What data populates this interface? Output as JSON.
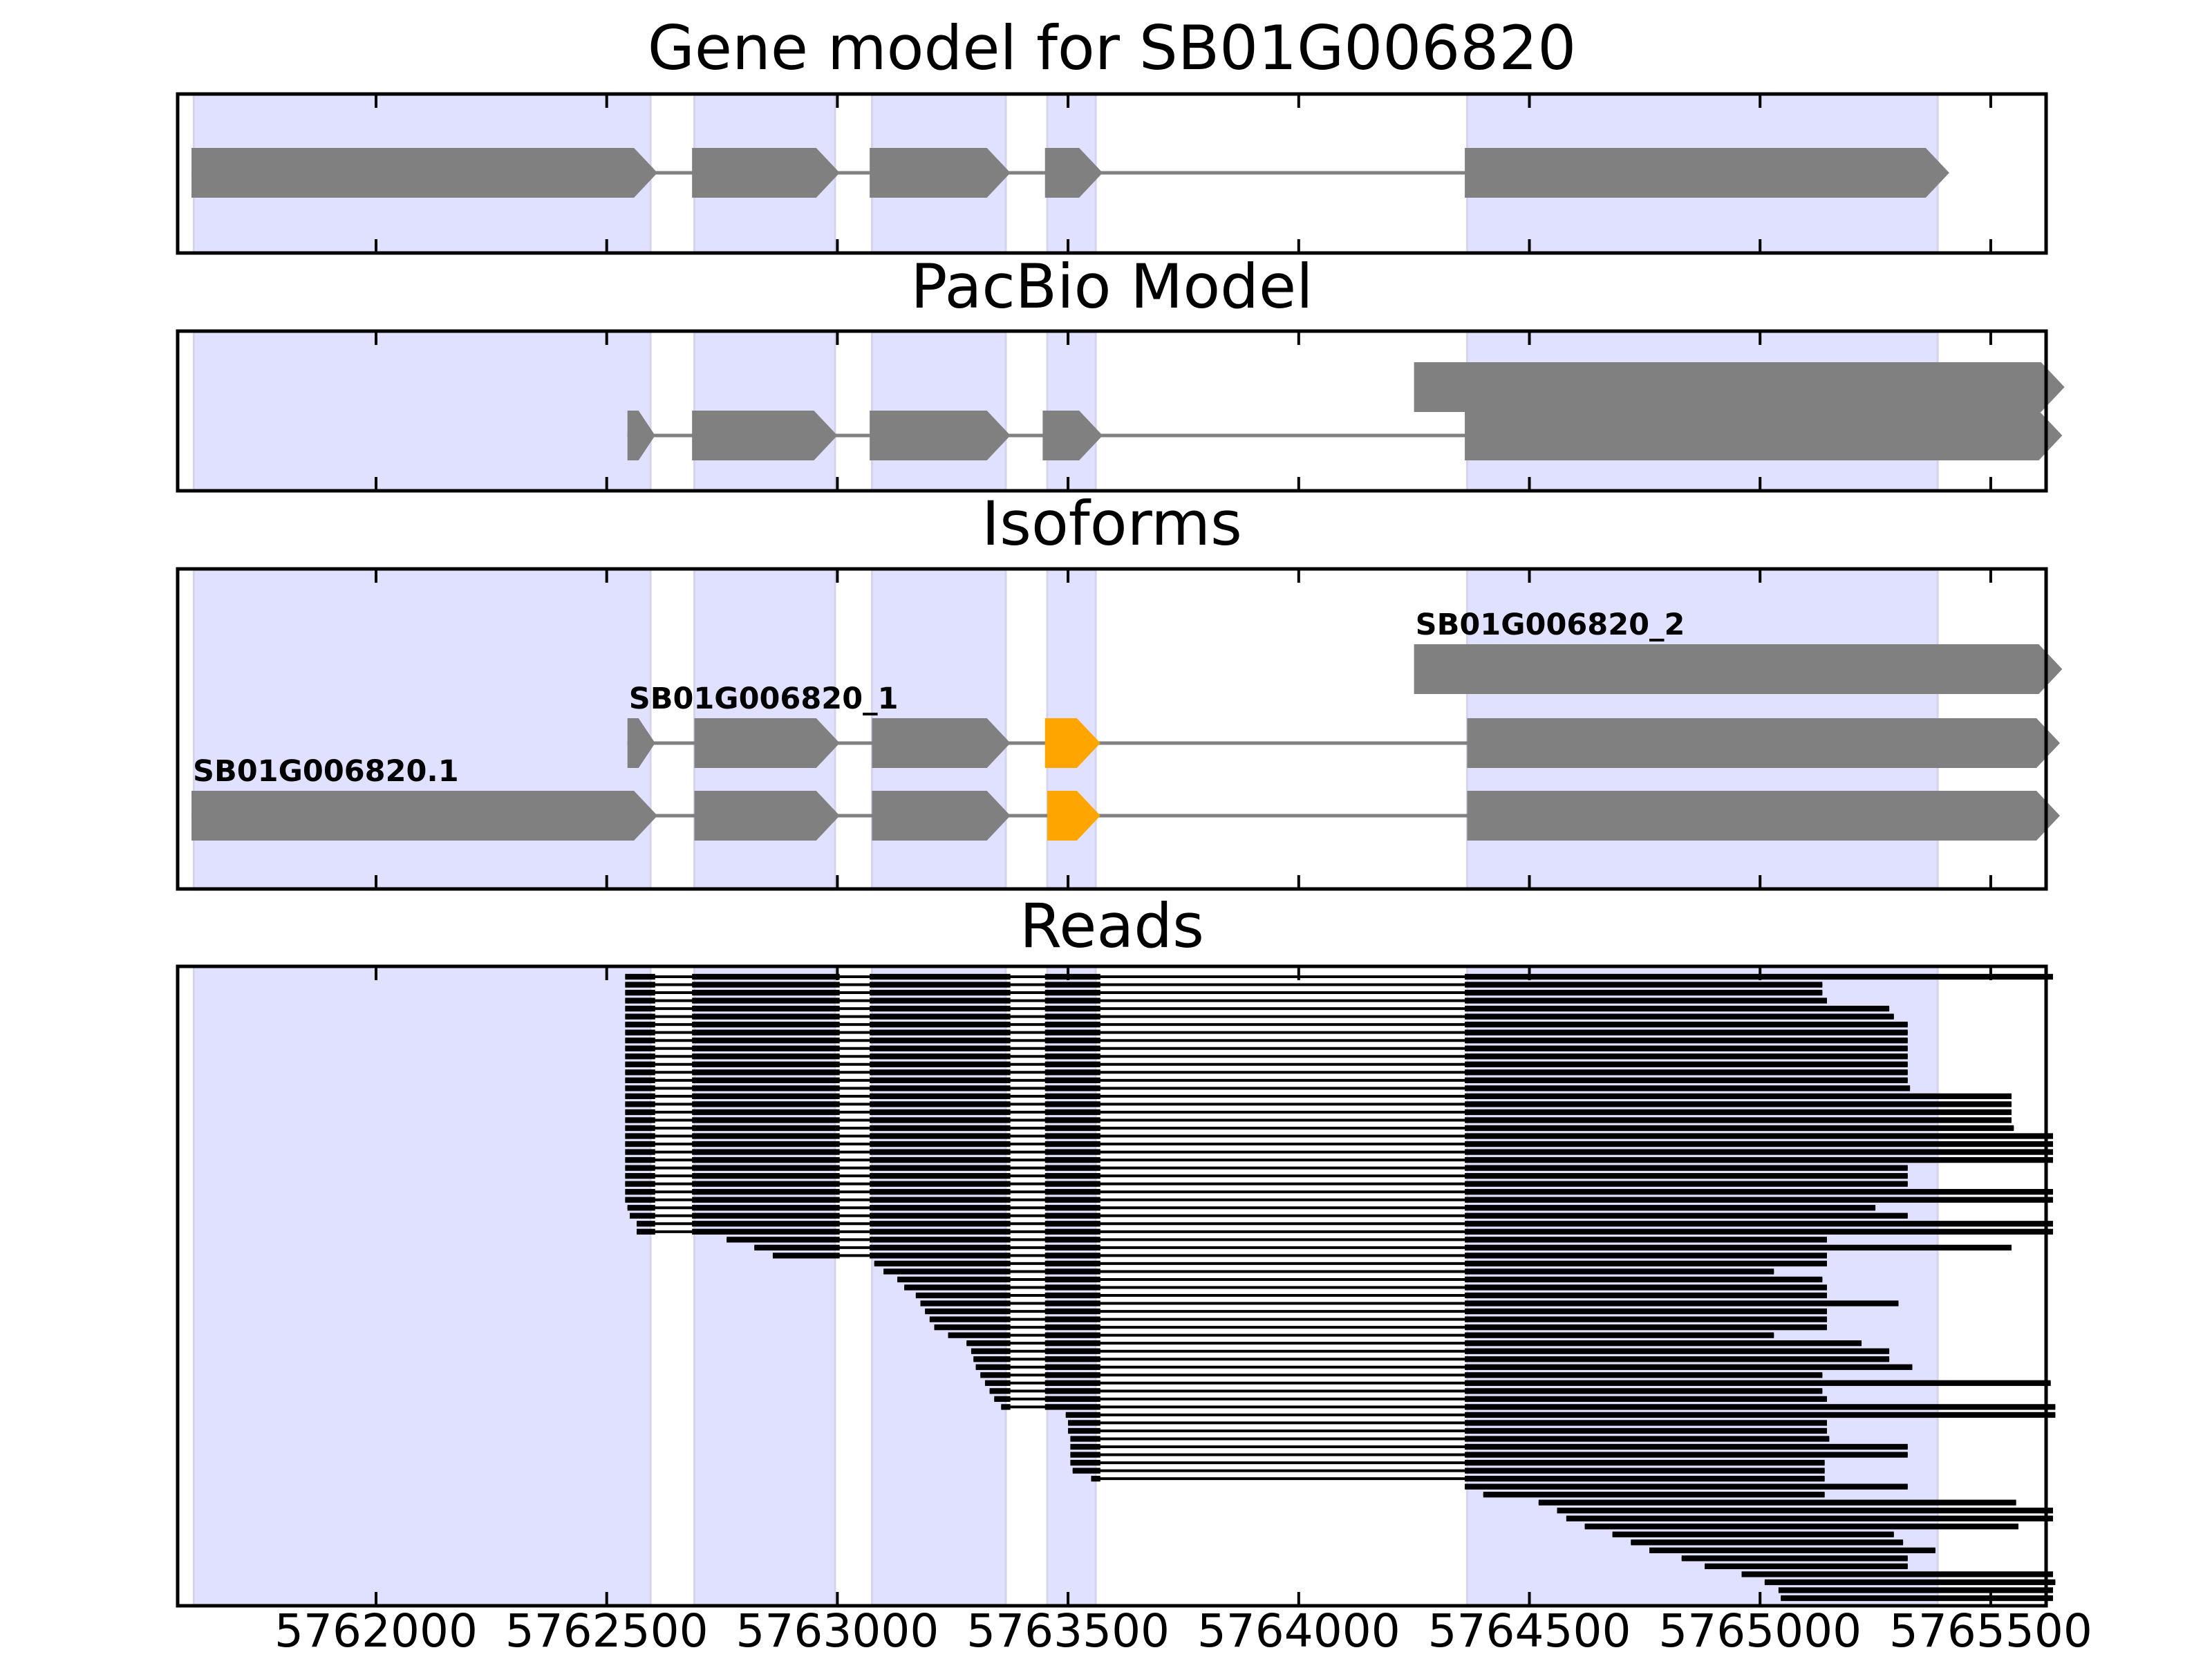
{
  "chart_data": {
    "type": "gene_model_tracks",
    "colors": {
      "exon": "#808080",
      "intron": "#808080",
      "highlight_exon": "#ffa500",
      "exon_band": "#e0e0ff",
      "read": "#000000",
      "frame": "#000000"
    },
    "xlim": [
      5761570,
      5765620
    ],
    "x_ticks": [
      5762000,
      5762500,
      5763000,
      5763500,
      5764000,
      5764500,
      5765000,
      5765500
    ],
    "x_tick_labels": [
      "5762000",
      "5762500",
      "5763000",
      "5763500",
      "5764000",
      "5764500",
      "5765000",
      "5765500"
    ],
    "exon_bands": [
      [
        5761605,
        5762595
      ],
      [
        5762690,
        5762995
      ],
      [
        5763075,
        5763365
      ],
      [
        5763455,
        5763560
      ],
      [
        5764365,
        5765385
      ]
    ],
    "panels": [
      {
        "key": "gene",
        "title": "Gene model for SB01G006820",
        "tracks": [
          {
            "label": "",
            "exons": [
              [
                5761600,
                5762610
              ],
              [
                5762685,
                5763005
              ],
              [
                5763070,
                5763375
              ],
              [
                5763450,
                5763575
              ],
              [
                5764360,
                5765410
              ]
            ]
          }
        ]
      },
      {
        "key": "pacbio",
        "title": "PacBio Model",
        "tracks": [
          {
            "label": "",
            "exons": [
              [
                5764250,
                5765660
              ]
            ]
          },
          {
            "label": "",
            "exons": [
              [
                5762545,
                5762605
              ],
              [
                5762685,
                5763000
              ],
              [
                5763070,
                5763375
              ],
              [
                5763445,
                5763575
              ],
              [
                5764360,
                5765655
              ]
            ]
          }
        ]
      },
      {
        "key": "isoforms",
        "title": "Isoforms",
        "tracks": [
          {
            "label": "SB01G006820_2",
            "exons": [
              [
                5764250,
                5765655
              ]
            ],
            "highlight": []
          },
          {
            "label": "SB01G006820_1",
            "exons": [
              [
                5762545,
                5762605
              ],
              [
                5762690,
                5763005
              ],
              [
                5763075,
                5763375
              ],
              [
                5763450,
                5763570
              ],
              [
                5764365,
                5765650
              ]
            ],
            "highlight": [
              3
            ]
          },
          {
            "label": "SB01G006820.1",
            "exons": [
              [
                5761600,
                5762610
              ],
              [
                5762690,
                5763005
              ],
              [
                5763075,
                5763375
              ],
              [
                5763455,
                5763570
              ],
              [
                5764365,
                5765650
              ]
            ],
            "highlight": [
              3
            ]
          }
        ]
      },
      {
        "key": "reads",
        "title": "Reads",
        "tracks": []
      }
    ],
    "reads": [
      {
        "start": 5762540,
        "end": 5765635
      },
      {
        "start": 5762540,
        "end": 5765135
      },
      {
        "start": 5762540,
        "end": 5765135
      },
      {
        "start": 5762540,
        "end": 5765145
      },
      {
        "start": 5762540,
        "end": 5765280
      },
      {
        "start": 5762540,
        "end": 5765290
      },
      {
        "start": 5762540,
        "end": 5765320
      },
      {
        "start": 5762540,
        "end": 5765320
      },
      {
        "start": 5762540,
        "end": 5765320
      },
      {
        "start": 5762540,
        "end": 5765320
      },
      {
        "start": 5762540,
        "end": 5765320
      },
      {
        "start": 5762540,
        "end": 5765320
      },
      {
        "start": 5762540,
        "end": 5765320
      },
      {
        "start": 5762540,
        "end": 5765320
      },
      {
        "start": 5762540,
        "end": 5765325
      },
      {
        "start": 5762540,
        "end": 5765545
      },
      {
        "start": 5762540,
        "end": 5765545
      },
      {
        "start": 5762540,
        "end": 5765545
      },
      {
        "start": 5762540,
        "end": 5765545
      },
      {
        "start": 5762540,
        "end": 5765550
      },
      {
        "start": 5762540,
        "end": 5765635
      },
      {
        "start": 5762540,
        "end": 5765635
      },
      {
        "start": 5762540,
        "end": 5765635
      },
      {
        "start": 5762540,
        "end": 5765635
      },
      {
        "start": 5762540,
        "end": 5765320
      },
      {
        "start": 5762540,
        "end": 5765320
      },
      {
        "start": 5762540,
        "end": 5765320
      },
      {
        "start": 5762540,
        "end": 5765635
      },
      {
        "start": 5762540,
        "end": 5765635
      },
      {
        "start": 5762545,
        "end": 5765250
      },
      {
        "start": 5762550,
        "end": 5765320
      },
      {
        "start": 5762565,
        "end": 5765635
      },
      {
        "start": 5762565,
        "end": 5765635
      },
      {
        "start": 5762760,
        "end": 5765145
      },
      {
        "start": 5762820,
        "end": 5765545
      },
      {
        "start": 5762860,
        "end": 5765145
      },
      {
        "start": 5763080,
        "end": 5765145
      },
      {
        "start": 5763100,
        "end": 5765030
      },
      {
        "start": 5763130,
        "end": 5765135
      },
      {
        "start": 5763145,
        "end": 5765145
      },
      {
        "start": 5763170,
        "end": 5765145
      },
      {
        "start": 5763180,
        "end": 5765300
      },
      {
        "start": 5763190,
        "end": 5765145
      },
      {
        "start": 5763200,
        "end": 5765145
      },
      {
        "start": 5763210,
        "end": 5765145
      },
      {
        "start": 5763240,
        "end": 5765030
      },
      {
        "start": 5763280,
        "end": 5765220
      },
      {
        "start": 5763290,
        "end": 5765280
      },
      {
        "start": 5763295,
        "end": 5765280
      },
      {
        "start": 5763300,
        "end": 5765330
      },
      {
        "start": 5763310,
        "end": 5765135
      },
      {
        "start": 5763320,
        "end": 5765630
      },
      {
        "start": 5763330,
        "end": 5765135
      },
      {
        "start": 5763340,
        "end": 5765145
      },
      {
        "start": 5763355,
        "end": 5765640
      },
      {
        "start": 5763495,
        "end": 5765640
      },
      {
        "start": 5763500,
        "end": 5765145
      },
      {
        "start": 5763500,
        "end": 5765145
      },
      {
        "start": 5763505,
        "end": 5765150
      },
      {
        "start": 5763505,
        "end": 5765320
      },
      {
        "start": 5763505,
        "end": 5765320
      },
      {
        "start": 5763505,
        "end": 5765140
      },
      {
        "start": 5763510,
        "end": 5765140
      },
      {
        "start": 5763550,
        "end": 5765140
      },
      {
        "start": 5764360,
        "end": 5765320
      },
      {
        "start": 5764400,
        "end": 5765140
      },
      {
        "start": 5764520,
        "end": 5765555
      },
      {
        "start": 5764560,
        "end": 5765635
      },
      {
        "start": 5764580,
        "end": 5765635
      },
      {
        "start": 5764620,
        "end": 5765560
      },
      {
        "start": 5764680,
        "end": 5765290
      },
      {
        "start": 5764720,
        "end": 5765310
      },
      {
        "start": 5764760,
        "end": 5765380
      },
      {
        "start": 5764830,
        "end": 5765320
      },
      {
        "start": 5764880,
        "end": 5765320
      },
      {
        "start": 5764960,
        "end": 5765635
      },
      {
        "start": 5765010,
        "end": 5765640
      },
      {
        "start": 5765040,
        "end": 5765635
      },
      {
        "start": 5765045,
        "end": 5765635
      }
    ]
  }
}
